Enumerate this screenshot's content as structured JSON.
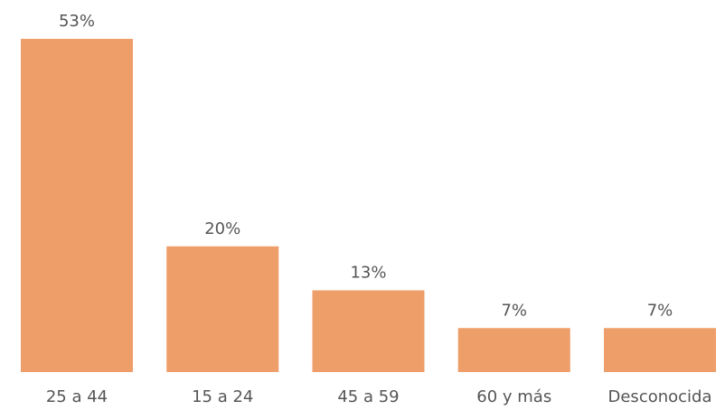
{
  "chart_data": {
    "type": "bar",
    "categories": [
      "25 a 44",
      "15 a 24",
      "45 a 59",
      "60 y más",
      "Desconocida"
    ],
    "values": [
      53,
      20,
      13,
      7,
      7
    ],
    "data_labels": [
      "53%",
      "20%",
      "13%",
      "7%",
      "7%"
    ],
    "title": "",
    "xlabel": "",
    "ylabel": "",
    "ylim": [
      0,
      53
    ],
    "grid": false,
    "legend": "none",
    "bar_color": "#EE9E68"
  }
}
